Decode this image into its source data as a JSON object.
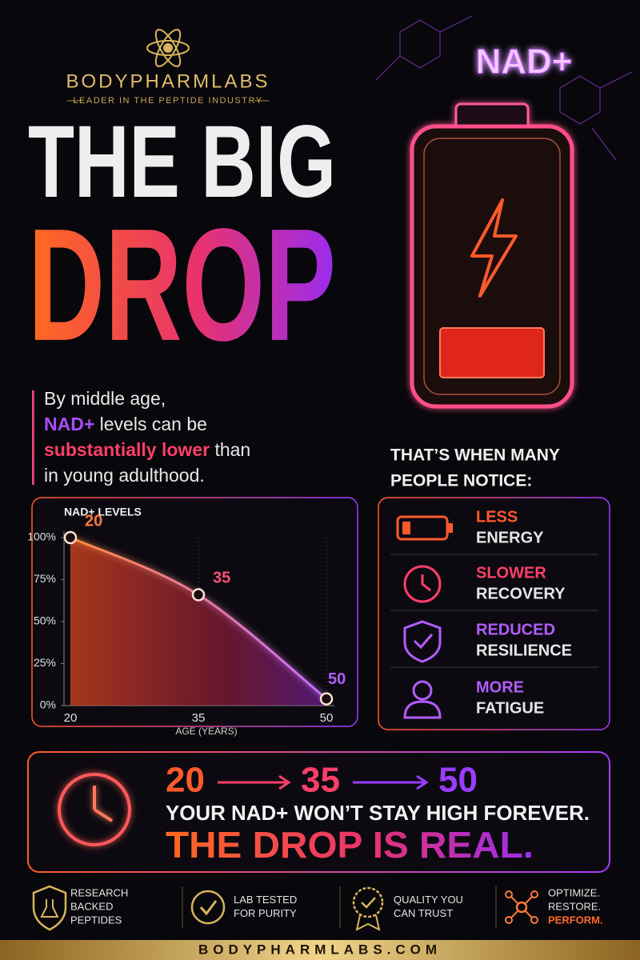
{
  "brand": {
    "name": "BODYPHARMLABS",
    "tagline": "LEADER IN THE PEPTIDE INDUSTRY"
  },
  "headline": {
    "line1": "THE BIG",
    "line2": "DROP"
  },
  "battery_label": "NAD+",
  "intro": {
    "line1": "By middle age,",
    "line2_accent": "NAD+",
    "line2_rest": "levels can be",
    "line3_accent": "substantially lower",
    "line3_rest": "than",
    "line4": "in young adulthood."
  },
  "chart_data": {
    "type": "line",
    "title": "NAD+ LEVELS",
    "x_label": "AGE (YEARS)",
    "x": [
      20,
      35,
      50
    ],
    "values": [
      100,
      66,
      4
    ],
    "color": "#ff7a3a",
    "xlim": [
      20,
      50
    ],
    "xticks": [
      20,
      35,
      50
    ],
    "ylim": [
      0,
      100
    ],
    "yticks": [
      {
        "value": 0,
        "label": "0%"
      },
      {
        "value": 25,
        "label": "25%"
      },
      {
        "value": 50,
        "label": "50%"
      },
      {
        "value": 75,
        "label": "75%"
      },
      {
        "value": 100,
        "label": "100%"
      }
    ]
  },
  "notice": {
    "title_line1": "THAT’S WHEN MANY",
    "title_line2": "PEOPLE NOTICE:",
    "items": [
      {
        "accent": "LESS",
        "text": "ENERGY"
      },
      {
        "accent": "SLOWER",
        "text": "RECOVERY"
      },
      {
        "accent": "REDUCED",
        "text": "RESILIENCE"
      },
      {
        "accent": "MORE",
        "text": "FATIGUE"
      }
    ]
  },
  "banner": {
    "sequence": [
      20,
      35,
      50
    ],
    "message": "YOUR NAD+ WON’T STAY HIGH FOREVER.",
    "tagline": "THE DROP IS REAL."
  },
  "badges": [
    {
      "lines": [
        "RESEARCH",
        "BACKED",
        "PEPTIDES"
      ]
    },
    {
      "lines": [
        "LAB TESTED",
        "FOR PURITY"
      ]
    },
    {
      "lines": [
        "QUALITY YOU",
        "CAN TRUST"
      ]
    },
    {
      "lines": [
        "OPTIMIZE.",
        "RESTORE.",
        "PERFORM."
      ]
    }
  ],
  "website": "BODYPHARMLABS.COM"
}
